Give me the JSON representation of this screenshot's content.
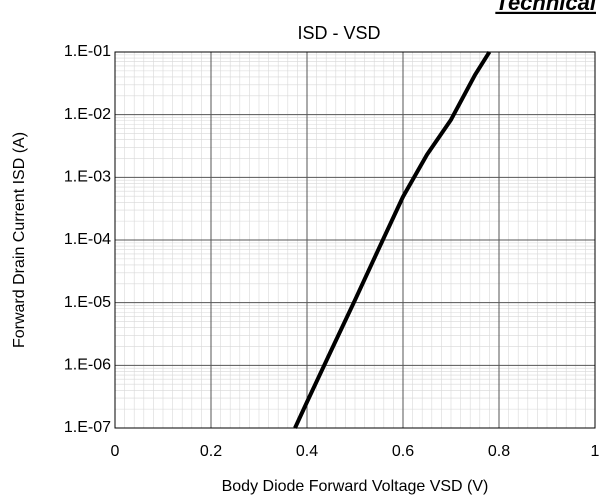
{
  "chart_data": {
    "type": "line",
    "title": "ISD - VSD",
    "annotation": "Technical",
    "x_label": "Body Diode Forward Voltage VSD (V)",
    "y_label": "Forward Drain Current ISD (A)",
    "log_y": true,
    "grid": true,
    "minor_grid": true,
    "series": [
      {
        "name": "ISD",
        "color": "#000000",
        "x": [
          0.375,
          0.4,
          0.45,
          0.5,
          0.55,
          0.6,
          0.65,
          0.7,
          0.75,
          0.78
        ],
        "values": [
          1e-07,
          2.6e-07,
          1.7e-06,
          1.1e-05,
          7.4e-05,
          0.00049,
          0.0023,
          0.0083,
          0.043,
          0.1
        ]
      }
    ],
    "xlim": [
      0,
      1
    ],
    "xticks": [
      0,
      0.2,
      0.4,
      0.6,
      0.8,
      1
    ],
    "ylim": [
      1e-07,
      0.1
    ],
    "yticks": [
      {
        "value": 1e-07,
        "label": "1.E-07"
      },
      {
        "value": 1e-06,
        "label": "1.E-06"
      },
      {
        "value": 1e-05,
        "label": "1.E-05"
      },
      {
        "value": 0.0001,
        "label": "1.E-04"
      },
      {
        "value": 0.001,
        "label": "1.E-03"
      },
      {
        "value": 0.01,
        "label": "1.E-02"
      },
      {
        "value": 0.1,
        "label": "1.E-01"
      }
    ]
  }
}
